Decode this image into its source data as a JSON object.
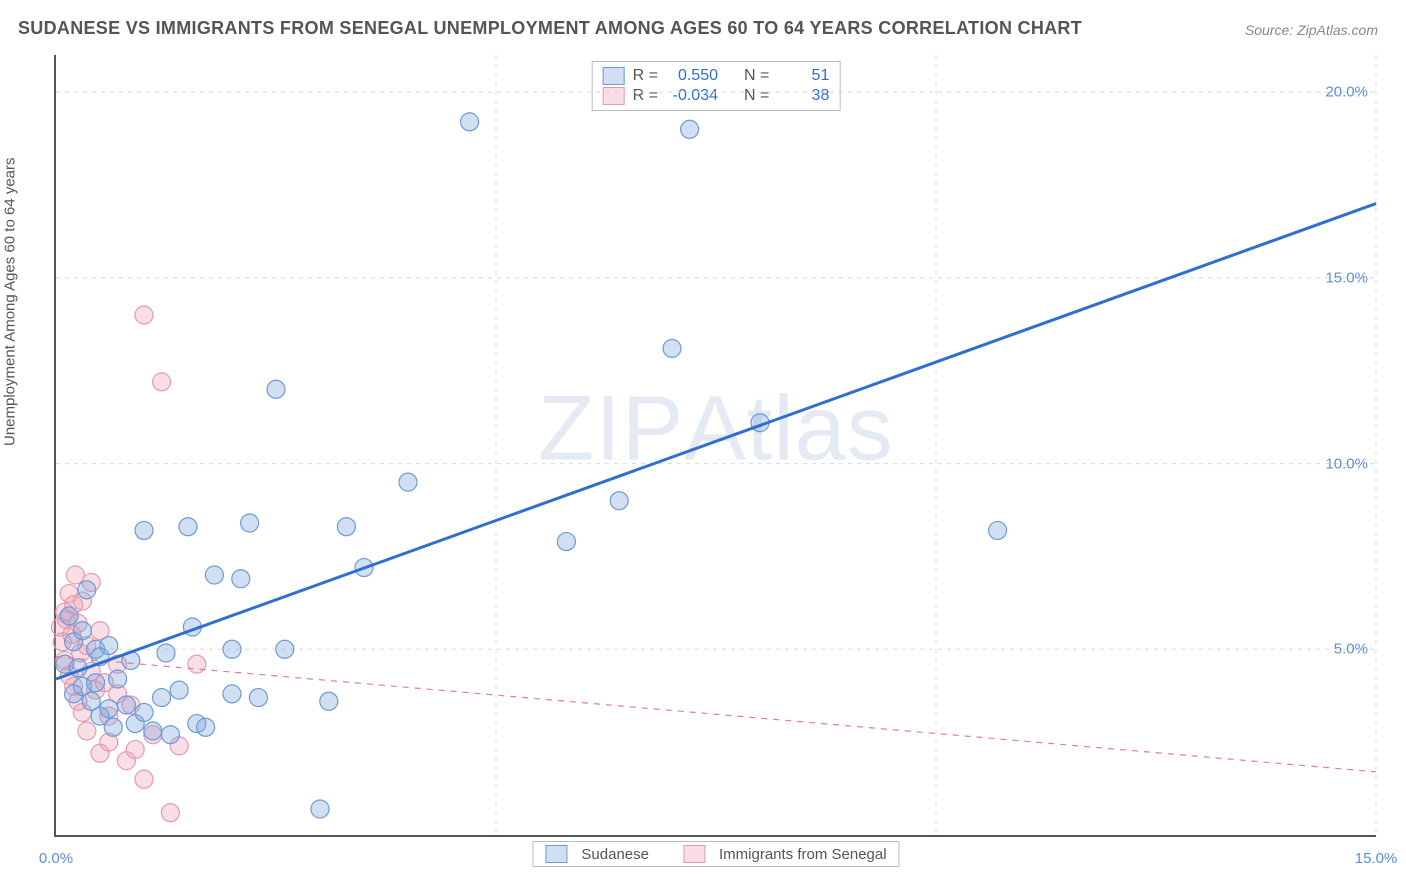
{
  "title": "SUDANESE VS IMMIGRANTS FROM SENEGAL UNEMPLOYMENT AMONG AGES 60 TO 64 YEARS CORRELATION CHART",
  "source": "Source: ZipAtlas.com",
  "watermark": "ZIPAtlas",
  "y_axis_title": "Unemployment Among Ages 60 to 64 years",
  "chart": {
    "type": "scatter-with-regression",
    "background_color": "#ffffff",
    "grid_color": "#d8d8d8",
    "axis_color": "#555555",
    "xlim": [
      0,
      15
    ],
    "ylim": [
      0,
      21
    ],
    "xticks": [
      {
        "v": 0,
        "label": "0.0%"
      },
      {
        "v": 5,
        "label": ""
      },
      {
        "v": 10,
        "label": ""
      },
      {
        "v": 15,
        "label": "15.0%"
      }
    ],
    "yticks": [
      {
        "v": 5,
        "label": "5.0%"
      },
      {
        "v": 10,
        "label": "10.0%"
      },
      {
        "v": 15,
        "label": "15.0%"
      },
      {
        "v": 20,
        "label": "20.0%"
      }
    ],
    "marker_radius": 9,
    "marker_stroke_width": 1.2,
    "line_width_solid": 3,
    "line_width_dashed": 1.2
  },
  "series": [
    {
      "name": "Sudanese",
      "fill": "rgba(124,164,222,0.35)",
      "stroke": "#6d9ad6",
      "line_color": "#2f6fd0",
      "line_dash": "none",
      "R": "0.550",
      "N": "51",
      "regression": {
        "x1": 0,
        "y1": 4.2,
        "x2": 15,
        "y2": 17.0
      },
      "points": [
        [
          0.1,
          4.6
        ],
        [
          0.15,
          5.9
        ],
        [
          0.2,
          5.2
        ],
        [
          0.2,
          3.8
        ],
        [
          0.25,
          4.5
        ],
        [
          0.3,
          5.5
        ],
        [
          0.3,
          4.0
        ],
        [
          0.35,
          6.6
        ],
        [
          0.4,
          3.6
        ],
        [
          0.45,
          4.1
        ],
        [
          0.45,
          5.0
        ],
        [
          0.5,
          3.2
        ],
        [
          0.5,
          4.8
        ],
        [
          0.6,
          3.4
        ],
        [
          0.6,
          5.1
        ],
        [
          0.65,
          2.9
        ],
        [
          0.7,
          4.2
        ],
        [
          0.8,
          3.5
        ],
        [
          0.85,
          4.7
        ],
        [
          0.9,
          3.0
        ],
        [
          1.0,
          3.3
        ],
        [
          1.0,
          8.2
        ],
        [
          1.1,
          2.8
        ],
        [
          1.2,
          3.7
        ],
        [
          1.25,
          4.9
        ],
        [
          1.3,
          2.7
        ],
        [
          1.4,
          3.9
        ],
        [
          1.5,
          8.3
        ],
        [
          1.55,
          5.6
        ],
        [
          1.6,
          3.0
        ],
        [
          1.7,
          2.9
        ],
        [
          1.8,
          7.0
        ],
        [
          2.0,
          5.0
        ],
        [
          2.0,
          3.8
        ],
        [
          2.1,
          6.9
        ],
        [
          2.2,
          8.4
        ],
        [
          2.3,
          3.7
        ],
        [
          2.5,
          12.0
        ],
        [
          2.6,
          5.0
        ],
        [
          3.0,
          0.7
        ],
        [
          3.1,
          3.6
        ],
        [
          3.3,
          8.3
        ],
        [
          3.5,
          7.2
        ],
        [
          4.0,
          9.5
        ],
        [
          4.7,
          19.2
        ],
        [
          5.8,
          7.9
        ],
        [
          6.4,
          9.0
        ],
        [
          7.0,
          13.1
        ],
        [
          7.2,
          19.0
        ],
        [
          8.0,
          11.1
        ],
        [
          10.7,
          8.2
        ]
      ]
    },
    {
      "name": "Immigrants from Senegal",
      "fill": "rgba(238,160,180,0.35)",
      "stroke": "#e59ab0",
      "line_color": "#e37aa0",
      "line_dash": "6,6",
      "R": "-0.034",
      "N": "38",
      "regression": {
        "x1": 0,
        "y1": 4.8,
        "x2": 15,
        "y2": 1.7
      },
      "points": [
        [
          0.05,
          5.6
        ],
        [
          0.07,
          5.2
        ],
        [
          0.1,
          6.0
        ],
        [
          0.1,
          4.7
        ],
        [
          0.12,
          5.8
        ],
        [
          0.15,
          6.5
        ],
        [
          0.15,
          4.3
        ],
        [
          0.18,
          5.4
        ],
        [
          0.2,
          6.2
        ],
        [
          0.2,
          4.0
        ],
        [
          0.22,
          7.0
        ],
        [
          0.25,
          5.7
        ],
        [
          0.25,
          3.6
        ],
        [
          0.28,
          4.9
        ],
        [
          0.3,
          6.3
        ],
        [
          0.3,
          3.3
        ],
        [
          0.35,
          5.1
        ],
        [
          0.35,
          2.8
        ],
        [
          0.4,
          4.4
        ],
        [
          0.4,
          6.8
        ],
        [
          0.45,
          3.9
        ],
        [
          0.5,
          5.5
        ],
        [
          0.5,
          2.2
        ],
        [
          0.55,
          4.1
        ],
        [
          0.6,
          3.2
        ],
        [
          0.6,
          2.5
        ],
        [
          0.7,
          3.8
        ],
        [
          0.7,
          4.6
        ],
        [
          0.8,
          2.0
        ],
        [
          0.85,
          3.5
        ],
        [
          0.9,
          2.3
        ],
        [
          1.0,
          1.5
        ],
        [
          1.0,
          14.0
        ],
        [
          1.1,
          2.7
        ],
        [
          1.2,
          12.2
        ],
        [
          1.3,
          0.6
        ],
        [
          1.4,
          2.4
        ],
        [
          1.6,
          4.6
        ]
      ]
    }
  ],
  "legend": {
    "s1": "Sudanese",
    "s2": "Immigrants from Senegal"
  },
  "stats_labels": {
    "R": "R =",
    "N": "N ="
  }
}
